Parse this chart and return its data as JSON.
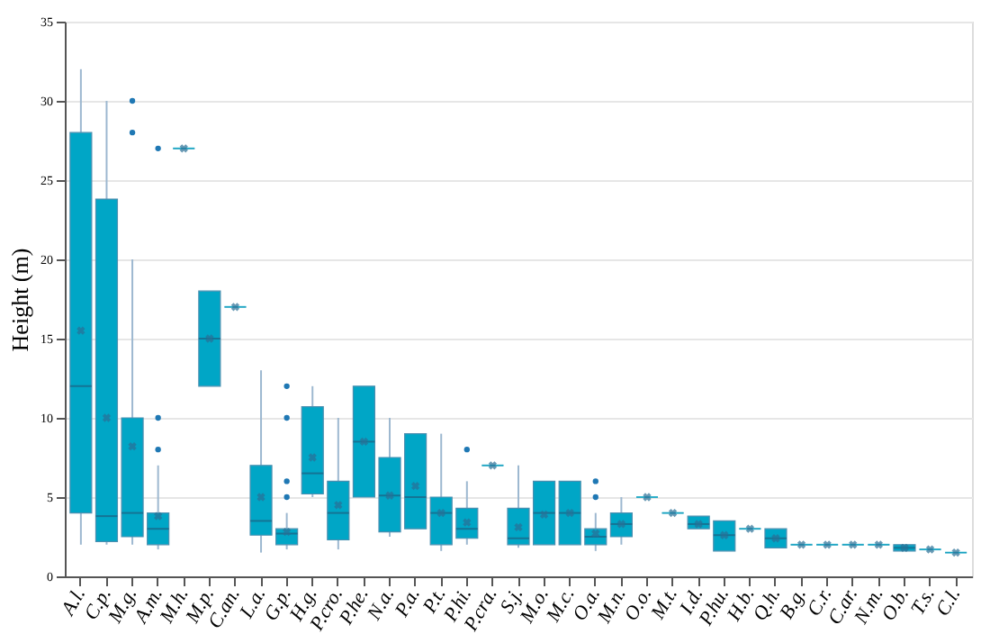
{
  "chart_data": {
    "type": "box",
    "ylabel": "Height (m)",
    "ylim": [
      0,
      35
    ],
    "yticks": [
      0,
      5,
      10,
      15,
      20,
      25,
      30,
      35
    ],
    "grid": "y",
    "color": "#00a6c6",
    "categories": [
      "A.l.",
      "C.p.",
      "M.g.",
      "A.m.",
      "M.h.",
      "M.p.",
      "C.an.",
      "L.a.",
      "G.p.",
      "H.g.",
      "P.cro.",
      "P.he.",
      "N.a.",
      "P.a.",
      "P.t.",
      "P.hi.",
      "P.cra.",
      "S.j.",
      "M.o.",
      "M.c.",
      "O.a.",
      "M.n.",
      "O.o.",
      "M.t.",
      "I.d.",
      "P.hu.",
      "H.b.",
      "Q.h.",
      "B.g.",
      "C.r.",
      "C.ar.",
      "N.m.",
      "O.b.",
      "T.s.",
      "C.l."
    ],
    "boxes": [
      {
        "low": 2,
        "q1": 4,
        "median": 12,
        "q3": 28,
        "high": 32,
        "mean": 15.5
      },
      {
        "low": 2,
        "q1": 2.2,
        "median": 3.8,
        "q3": 23.8,
        "high": 30,
        "mean": 10
      },
      {
        "low": 2,
        "q1": 2.5,
        "median": 4,
        "q3": 10,
        "high": 20,
        "mean": 8.2,
        "outliers": [
          28,
          30
        ]
      },
      {
        "low": 1.7,
        "q1": 2,
        "median": 3,
        "q3": 4,
        "high": 7,
        "mean": 3.8,
        "outliers": [
          8,
          10,
          27
        ]
      },
      {
        "low": 27,
        "q1": 27,
        "median": 27,
        "q3": 27,
        "high": 27,
        "mean": 27
      },
      {
        "low": 12,
        "q1": 12,
        "median": 15,
        "q3": 18,
        "high": 18,
        "mean": 15
      },
      {
        "low": 17,
        "q1": 17,
        "median": 17,
        "q3": 17,
        "high": 17,
        "mean": 17
      },
      {
        "low": 1.5,
        "q1": 2.6,
        "median": 3.5,
        "q3": 7,
        "high": 13,
        "mean": 5
      },
      {
        "low": 1.7,
        "q1": 2,
        "median": 2.7,
        "q3": 3,
        "high": 4,
        "mean": 2.8,
        "outliers": [
          5,
          6,
          10,
          12
        ]
      },
      {
        "low": 5,
        "q1": 5.2,
        "median": 6.5,
        "q3": 10.7,
        "high": 12,
        "mean": 7.5
      },
      {
        "low": 1.7,
        "q1": 2.3,
        "median": 4,
        "q3": 6,
        "high": 10,
        "mean": 4.5
      },
      {
        "low": 5,
        "q1": 5,
        "median": 8.5,
        "q3": 12,
        "high": 12,
        "mean": 8.5
      },
      {
        "low": 2.5,
        "q1": 2.8,
        "median": 5.1,
        "q3": 7.5,
        "high": 10,
        "mean": 5.1
      },
      {
        "low": 3,
        "q1": 3,
        "median": 5,
        "q3": 9,
        "high": 9,
        "mean": 5.7
      },
      {
        "low": 1.6,
        "q1": 2,
        "median": 4,
        "q3": 5,
        "high": 9,
        "mean": 4
      },
      {
        "low": 2,
        "q1": 2.4,
        "median": 3,
        "q3": 4.3,
        "high": 6,
        "mean": 3.4,
        "outliers": [
          8
        ]
      },
      {
        "low": 7,
        "q1": 7,
        "median": 7,
        "q3": 7,
        "high": 7,
        "mean": 7
      },
      {
        "low": 1.8,
        "q1": 2,
        "median": 2.4,
        "q3": 4.3,
        "high": 7,
        "mean": 3.1
      },
      {
        "low": 2,
        "q1": 2,
        "median": 4,
        "q3": 6,
        "high": 6,
        "mean": 3.9
      },
      {
        "low": 2,
        "q1": 2,
        "median": 4,
        "q3": 6,
        "high": 6,
        "mean": 4
      },
      {
        "low": 1.6,
        "q1": 2,
        "median": 2.5,
        "q3": 3,
        "high": 4,
        "mean": 2.7,
        "outliers": [
          5,
          6
        ]
      },
      {
        "low": 2,
        "q1": 2.5,
        "median": 3.3,
        "q3": 4,
        "high": 5,
        "mean": 3.3
      },
      {
        "low": 5,
        "q1": 5,
        "median": 5,
        "q3": 5,
        "high": 5,
        "mean": 5
      },
      {
        "low": 4,
        "q1": 4,
        "median": 4,
        "q3": 4,
        "high": 4,
        "mean": 4
      },
      {
        "low": 3,
        "q1": 3,
        "median": 3.3,
        "q3": 3.8,
        "high": 3.8,
        "mean": 3.3
      },
      {
        "low": 1.6,
        "q1": 1.6,
        "median": 2.6,
        "q3": 3.5,
        "high": 3.5,
        "mean": 2.6
      },
      {
        "low": 3,
        "q1": 3,
        "median": 3,
        "q3": 3,
        "high": 3,
        "mean": 3
      },
      {
        "low": 1.8,
        "q1": 1.8,
        "median": 2.4,
        "q3": 3,
        "high": 3,
        "mean": 2.4
      },
      {
        "low": 2,
        "q1": 2,
        "median": 2,
        "q3": 2,
        "high": 2,
        "mean": 2
      },
      {
        "low": 2,
        "q1": 2,
        "median": 2,
        "q3": 2,
        "high": 2,
        "mean": 2
      },
      {
        "low": 2,
        "q1": 2,
        "median": 2,
        "q3": 2,
        "high": 2,
        "mean": 2
      },
      {
        "low": 2,
        "q1": 2,
        "median": 2,
        "q3": 2,
        "high": 2,
        "mean": 2
      },
      {
        "low": 1.6,
        "q1": 1.6,
        "median": 1.8,
        "q3": 2,
        "high": 2,
        "mean": 1.8
      },
      {
        "low": 1.7,
        "q1": 1.7,
        "median": 1.7,
        "q3": 1.7,
        "high": 1.7,
        "mean": 1.7
      },
      {
        "low": 1.5,
        "q1": 1.5,
        "median": 1.5,
        "q3": 1.5,
        "high": 1.5,
        "mean": 1.5
      }
    ]
  }
}
